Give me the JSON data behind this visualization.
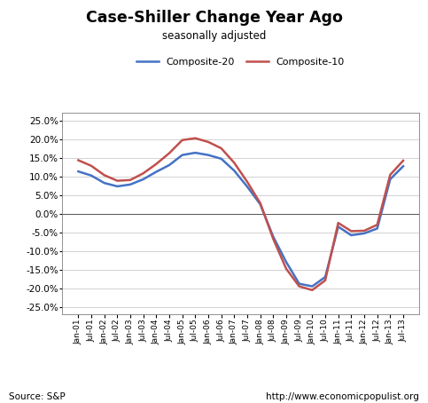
{
  "title": "Case-Shiller Change Year Ago",
  "subtitle": "seasonally adjusted",
  "source_left": "Source: S&P",
  "source_right": "http://www.economicpopulist.org",
  "ylim": [
    -0.27,
    0.27
  ],
  "yticks": [
    -0.25,
    -0.2,
    -0.15,
    -0.1,
    -0.05,
    0.0,
    0.05,
    0.1,
    0.15,
    0.2,
    0.25
  ],
  "composite20_color": "#4472C4",
  "composite10_color": "#C0504D",
  "background_color": "#FFFFFF",
  "x_labels": [
    "Jan-01",
    "Jul-01",
    "Jan-02",
    "Jul-02",
    "Jan-03",
    "Jul-03",
    "Jan-04",
    "Jul-04",
    "Jan-05",
    "Jul-05",
    "Jan-06",
    "Jul-06",
    "Jan-07",
    "Jul-07",
    "Jan-08",
    "Jul-08",
    "Jan-09",
    "Jul-09",
    "Jan-10",
    "Jul-10",
    "Jan-11",
    "Jul-11",
    "Jan-12",
    "Jul-12",
    "Jan-13",
    "Jul-13"
  ],
  "composite20": [
    0.113,
    0.102,
    0.082,
    0.073,
    0.078,
    0.092,
    0.112,
    0.13,
    0.157,
    0.163,
    0.157,
    0.147,
    0.115,
    0.072,
    0.025,
    -0.062,
    -0.13,
    -0.188,
    -0.195,
    -0.17,
    -0.035,
    -0.058,
    -0.053,
    -0.04,
    0.092,
    0.127
  ],
  "composite10": [
    0.143,
    0.128,
    0.103,
    0.088,
    0.09,
    0.108,
    0.133,
    0.162,
    0.197,
    0.202,
    0.192,
    0.175,
    0.136,
    0.085,
    0.028,
    -0.068,
    -0.148,
    -0.195,
    -0.205,
    -0.179,
    -0.025,
    -0.047,
    -0.046,
    -0.03,
    0.104,
    0.142
  ],
  "figsize": [
    4.83,
    4.54
  ],
  "dpi": 100
}
